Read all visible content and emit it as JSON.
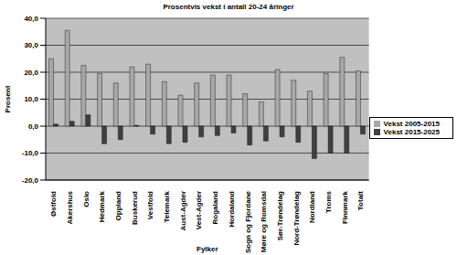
{
  "chart_data": {
    "type": "bar",
    "title": "Prosentvis vekst i antall 20-24 åringer",
    "x_label": "Fylker",
    "y_label": "Prosent",
    "categories": [
      "Østfold",
      "Akershus",
      "Oslo",
      "Hedmark",
      "Oppland",
      "Buskerud",
      "Vestfold",
      "Telemark",
      "Aust-Agder",
      "Vest-Agder",
      "Rogaland",
      "Hordaland",
      "Sogn og Fjordane",
      "Møre og Romsdal",
      "Sør-Trøndelag",
      "Nord-Trøndelag",
      "Nordland",
      "Troms",
      "Finnmark",
      "Totalt"
    ],
    "series": [
      {
        "name": "Vekst 2005-2015",
        "color": "#a8a8a8",
        "values": [
          25.0,
          35.5,
          22.5,
          19.5,
          16.0,
          22.0,
          23.0,
          16.5,
          11.5,
          16.0,
          19.0,
          19.0,
          12.0,
          9.0,
          21.0,
          17.0,
          13.0,
          19.5,
          25.5,
          20.5
        ]
      },
      {
        "name": "Vekst 2015-2025",
        "color": "#404040",
        "values": [
          0.8,
          1.8,
          4.2,
          -6.5,
          -5.0,
          0.3,
          -3.0,
          -6.5,
          -6.0,
          -4.0,
          -3.5,
          -2.5,
          -7.0,
          -5.5,
          -4.0,
          -6.0,
          -12.0,
          -10.0,
          -10.0,
          -3.0
        ]
      }
    ],
    "ylim": [
      -20,
      40
    ],
    "yticks": [
      {
        "value": -20,
        "label": "-20,0"
      },
      {
        "value": -10,
        "label": "-10,0"
      },
      {
        "value": 0,
        "label": "0,0"
      },
      {
        "value": 10,
        "label": "10,0"
      },
      {
        "value": 20,
        "label": "20,0"
      },
      {
        "value": 30,
        "label": "30,0"
      },
      {
        "value": 40,
        "label": "40,0"
      }
    ],
    "grid": true,
    "legend": "right"
  }
}
